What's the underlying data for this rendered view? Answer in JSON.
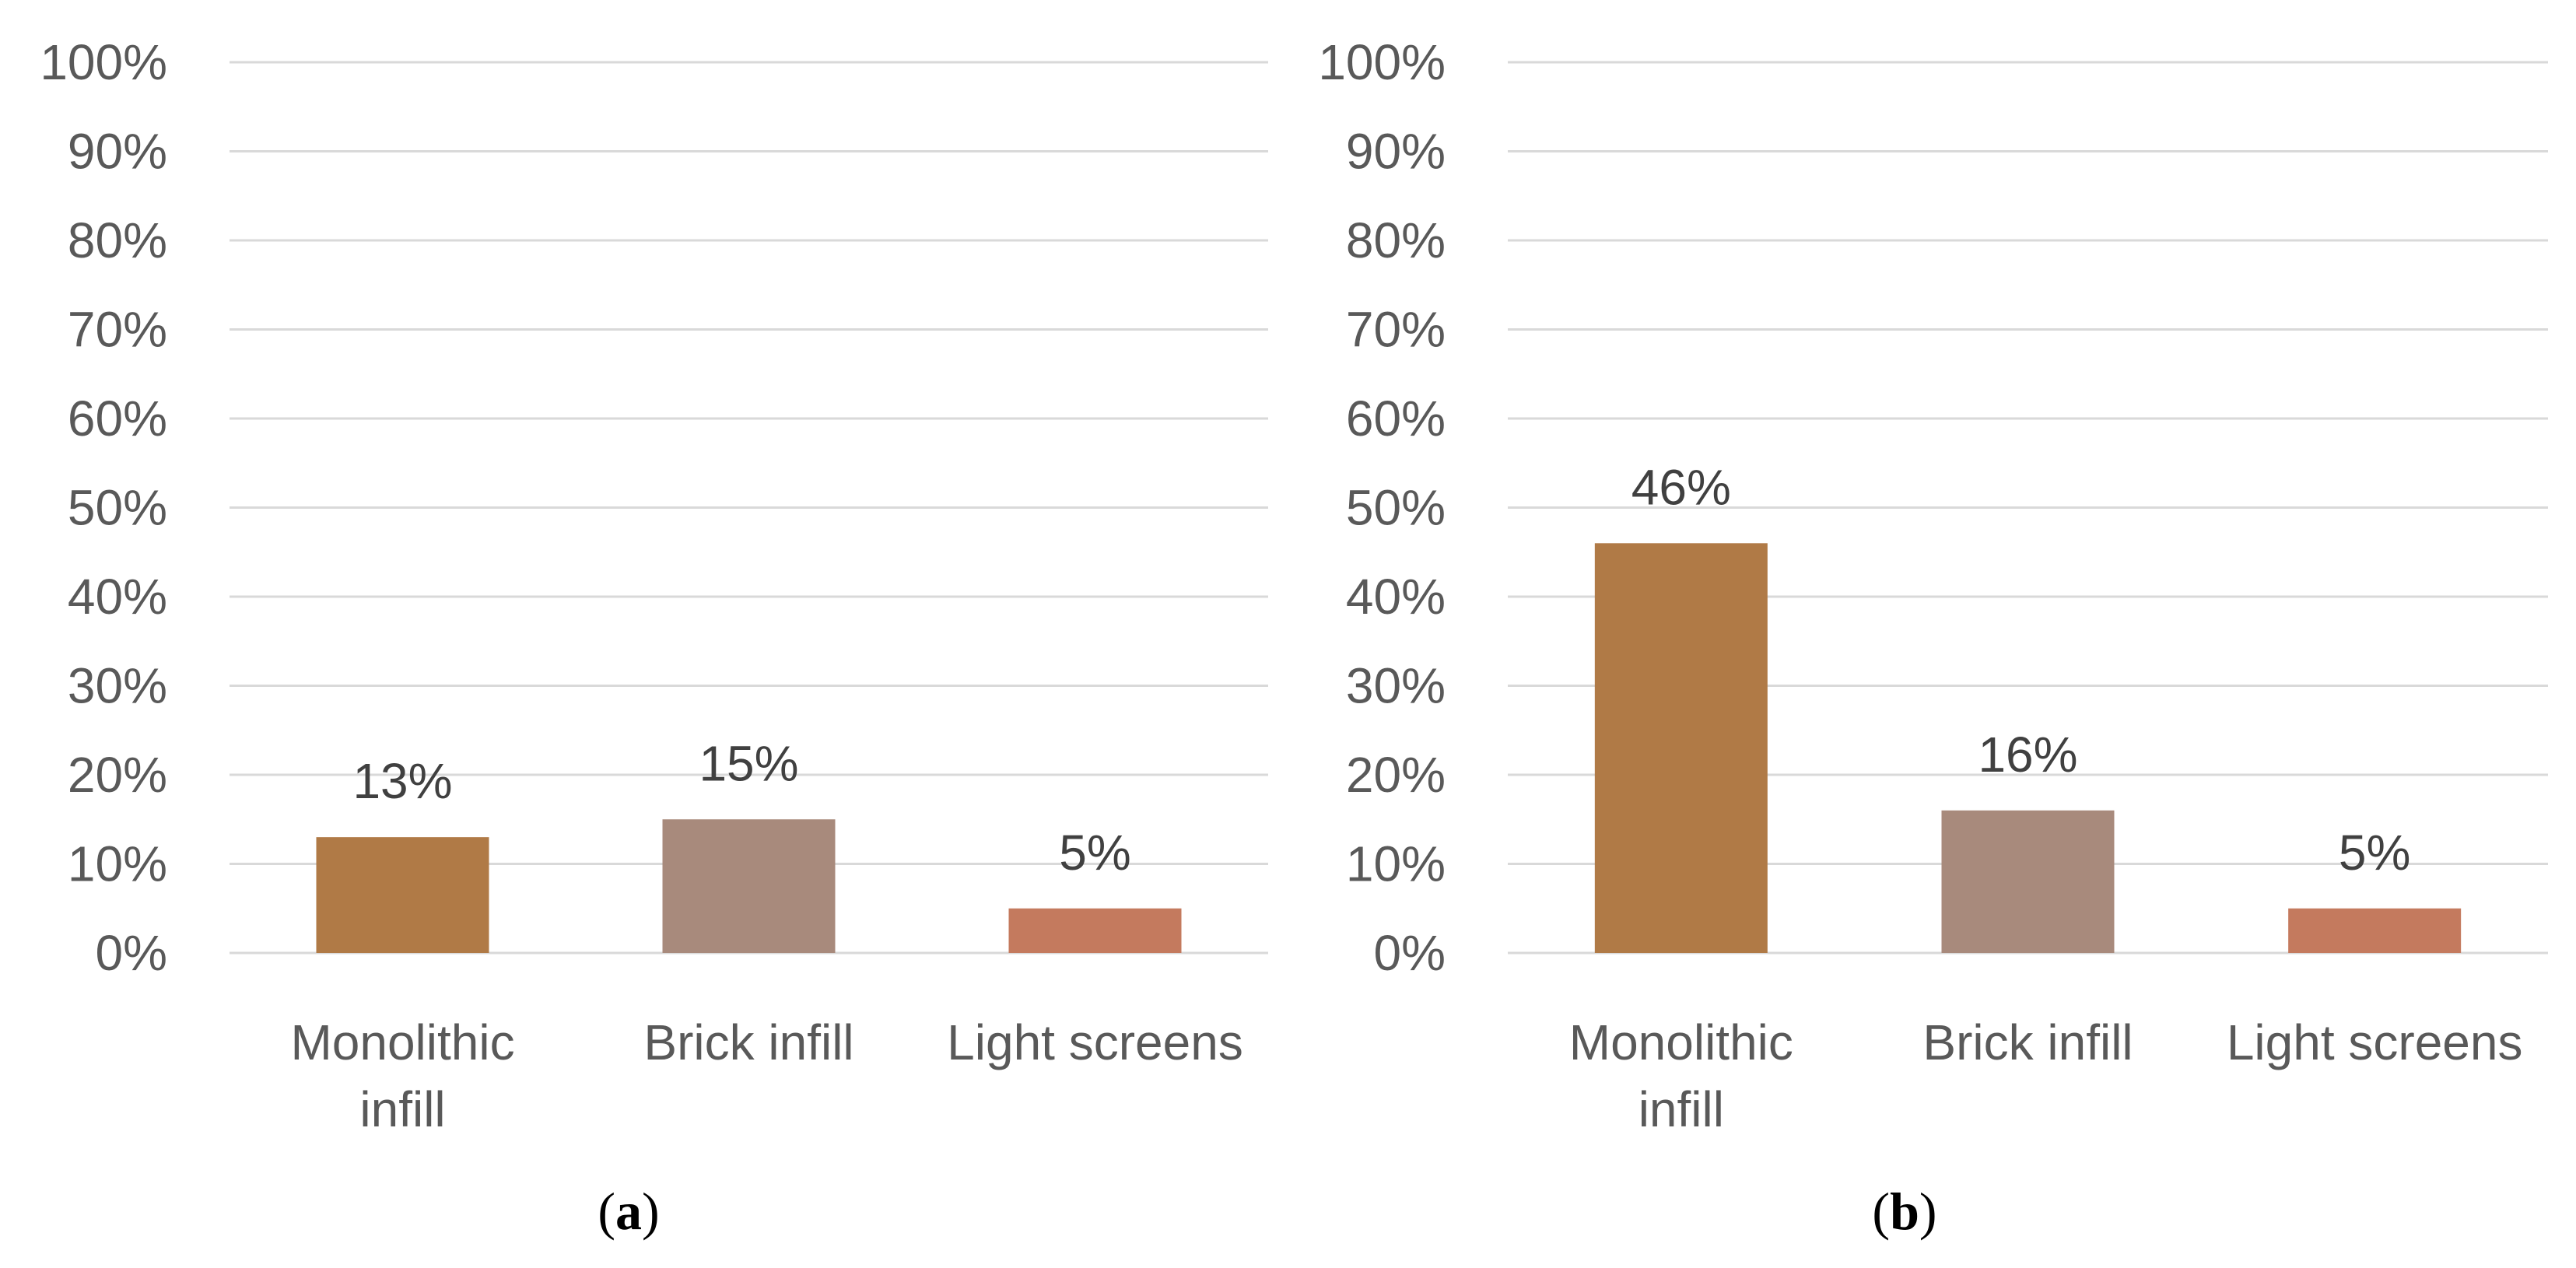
{
  "chart_data": [
    {
      "type": "bar",
      "panel_label": {
        "open": "(",
        "letter": "a",
        "close": ")"
      },
      "categories": [
        [
          "Monolithic",
          "infill"
        ],
        [
          "Brick infill"
        ],
        [
          "Light screens"
        ]
      ],
      "values": [
        13,
        15,
        5
      ],
      "value_labels": [
        "13%",
        "15%",
        "5%"
      ],
      "colors": [
        "#b07a46",
        "#a88a7c",
        "#c47a5e"
      ],
      "ylim": [
        0,
        100
      ],
      "yticks": [
        "0%",
        "10%",
        "20%",
        "30%",
        "40%",
        "50%",
        "60%",
        "70%",
        "80%",
        "90%",
        "100%"
      ],
      "grid": true,
      "legend": "none"
    },
    {
      "type": "bar",
      "panel_label": {
        "open": "(",
        "letter": "b",
        "close": ")"
      },
      "categories": [
        [
          "Monolithic",
          "infill"
        ],
        [
          "Brick infill"
        ],
        [
          "Light screens"
        ]
      ],
      "values": [
        46,
        16,
        5
      ],
      "value_labels": [
        "46%",
        "16%",
        "5%"
      ],
      "colors": [
        "#b07a46",
        "#a88a7c",
        "#c47a5e"
      ],
      "ylim": [
        0,
        100
      ],
      "yticks": [
        "0%",
        "10%",
        "20%",
        "30%",
        "40%",
        "50%",
        "60%",
        "70%",
        "80%",
        "90%",
        "100%"
      ],
      "grid": true,
      "legend": "none"
    }
  ]
}
